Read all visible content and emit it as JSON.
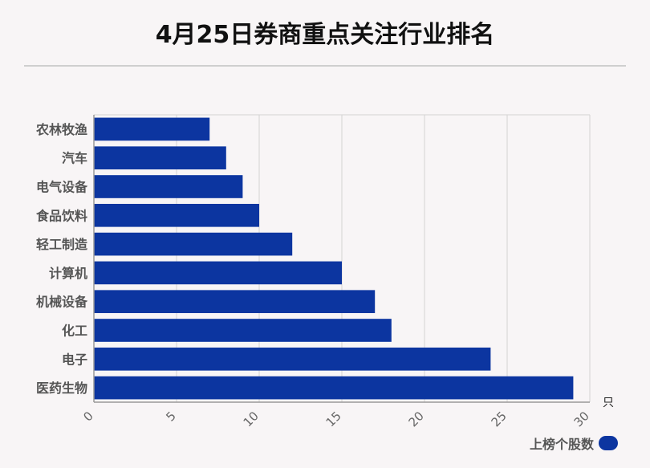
{
  "colors": {
    "bar": "#0c35a0",
    "grid": "#d3d3d3",
    "axis": "#999999"
  },
  "chart_data": {
    "type": "bar",
    "orientation": "horizontal",
    "title": "4月25日券商重点关注行业排名",
    "categories": [
      "农林牧渔",
      "汽车",
      "电气设备",
      "食品饮料",
      "轻工制造",
      "计算机",
      "机械设备",
      "化工",
      "电子",
      "医药生物"
    ],
    "series": [
      {
        "name": "上榜个股数",
        "values": [
          7,
          8,
          9,
          10,
          12,
          15,
          17,
          18,
          24,
          29
        ]
      }
    ],
    "xlim": [
      0,
      30
    ],
    "xticks": [
      "0",
      "5",
      "10",
      "15",
      "20",
      "25",
      "30"
    ],
    "x_unit": "只",
    "grid": true,
    "legend_position": "bottom-right"
  }
}
